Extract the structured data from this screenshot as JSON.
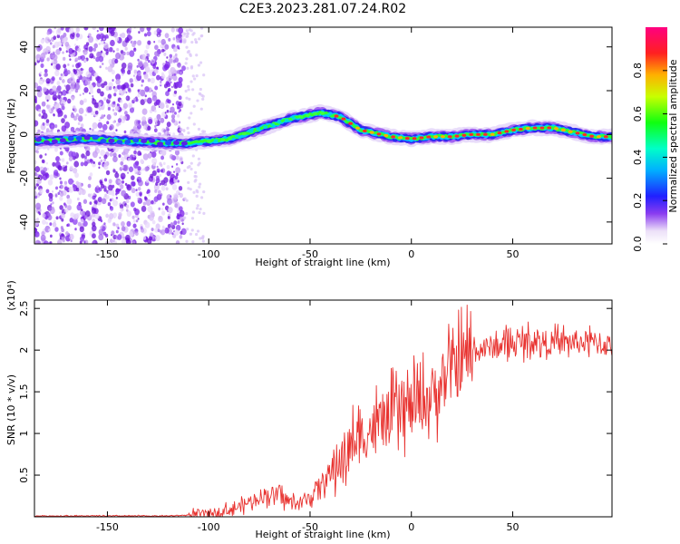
{
  "title": "C2E3.2023.281.07.24.R02",
  "chart_data": [
    {
      "type": "heatmap",
      "xlabel": "Height of straight line (km)",
      "ylabel": "Frequency (Hz)",
      "xlim": [
        -186,
        99
      ],
      "ylim": [
        -50,
        49
      ],
      "xticks": [
        -150,
        -100,
        -50,
        0,
        50
      ],
      "yticks": [
        -40,
        -20,
        0,
        20,
        40
      ],
      "colorbar": {
        "label": "Normalized spectral amplitude",
        "range": [
          0,
          1
        ],
        "ticks": [
          0.0,
          0.2,
          0.4,
          0.6,
          0.8
        ]
      },
      "ridge": {
        "x": [
          -186,
          -160,
          -140,
          -120,
          -110,
          -100,
          -90,
          -80,
          -70,
          -60,
          -50,
          -45,
          -40,
          -35,
          -30,
          -25,
          -20,
          -10,
          0,
          10,
          20,
          30,
          40,
          50,
          60,
          70,
          80,
          90,
          99
        ],
        "frequency": [
          -3,
          -2,
          -3,
          -4,
          -4,
          -3,
          -2,
          1,
          4,
          7,
          9,
          10,
          9,
          8,
          5,
          2,
          1,
          -1,
          -2,
          -1,
          -1,
          0,
          0,
          2,
          3,
          3,
          1,
          -1,
          -1
        ]
      }
    },
    {
      "type": "line",
      "xlabel": "Height of straight line (km)",
      "ylabel": "SNR (10 * v/v)",
      "y_multiplier": "(x10⁴)",
      "xlim": [
        -186,
        99
      ],
      "ylim": [
        0,
        2.6
      ],
      "xticks": [
        -150,
        -100,
        -50,
        0,
        50
      ],
      "yticks": [
        0.5,
        1.0,
        1.5,
        2.0,
        2.5
      ],
      "color": "#e8322f",
      "series": [
        {
          "x": [
            -186,
            -150,
            -120,
            -110,
            -100,
            -90,
            -85,
            -80,
            -75,
            -70,
            -65,
            -60,
            -55,
            -50,
            -45,
            -40,
            -35,
            -30,
            -25,
            -20,
            -15,
            -10,
            -5,
            0,
            5,
            10,
            15,
            20,
            25,
            30,
            40,
            50,
            55,
            60,
            70,
            80,
            90,
            99
          ],
          "values": [
            0.01,
            0.01,
            0.01,
            0.02,
            0.04,
            0.08,
            0.12,
            0.18,
            0.24,
            0.28,
            0.25,
            0.18,
            0.15,
            0.25,
            0.38,
            0.52,
            0.68,
            0.85,
            0.95,
            1.05,
            1.12,
            1.2,
            1.28,
            1.3,
            1.38,
            1.45,
            1.6,
            1.75,
            1.88,
            1.98,
            2.04,
            2.08,
            2.1,
            2.12,
            2.08,
            2.1,
            2.09,
            2.05
          ]
        }
      ]
    }
  ]
}
